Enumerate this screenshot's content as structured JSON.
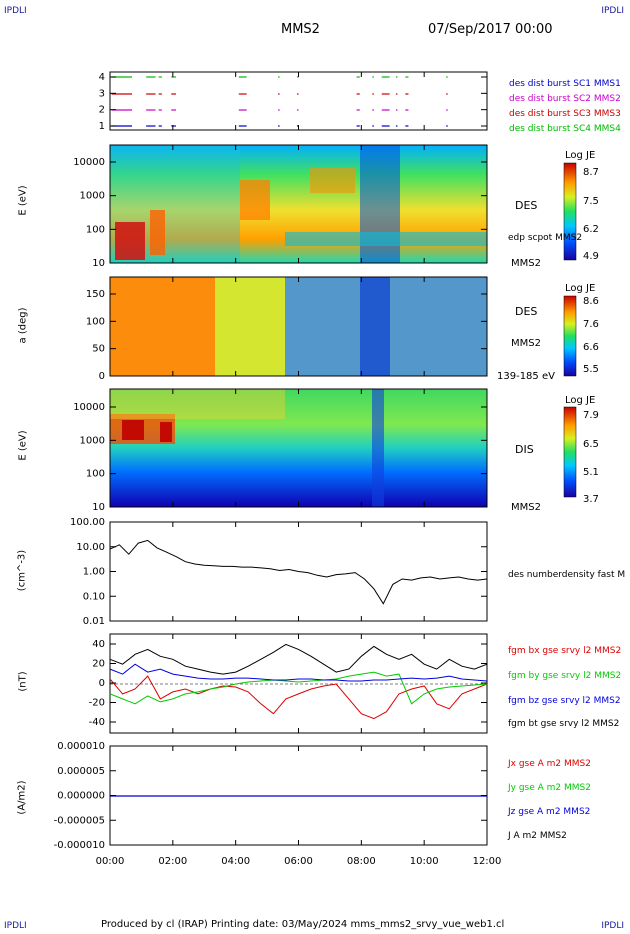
{
  "corners": {
    "top_left": "IPDLI",
    "top_right": "IPDLI",
    "bottom_left": "IPDLI",
    "bottom_right": "IPDLI"
  },
  "header": {
    "spacecraft": "MMS2",
    "date": "07/Sep/2017 00:00"
  },
  "footer": {
    "text": "Produced by cl (IRAP)   Printing date: 03/May/2024   mms_mms2_srvy_vue_web1.cl"
  },
  "time_axis": {
    "ticks": [
      "00:00",
      "02:00",
      "04:00",
      "06:00",
      "08:00",
      "10:00",
      "12:00"
    ],
    "range_hours": [
      0,
      12
    ]
  },
  "chart_data": [
    {
      "type": "timeline",
      "panel": "burst",
      "yticks": [
        "4",
        "3",
        "2",
        "1"
      ],
      "legend": [
        {
          "name": "des dist burst SC1 MMS1",
          "color": "#0000cc"
        },
        {
          "name": "des dist burst SC2 MMS2",
          "color": "#cc00cc"
        },
        {
          "name": "des dist burst SC3 MMS3",
          "color": "#cc0000"
        },
        {
          "name": "des dist burst SC4 MMS4",
          "color": "#00bb00"
        }
      ],
      "segments_hours": [
        [
          0.05,
          0.7
        ],
        [
          1.15,
          1.45
        ],
        [
          1.55,
          1.65
        ],
        [
          1.95,
          2.1
        ],
        [
          4.1,
          4.35
        ],
        [
          5.35,
          5.4
        ],
        [
          5.95,
          6.0
        ],
        [
          7.85,
          7.95
        ],
        [
          8.35,
          8.4
        ],
        [
          8.65,
          8.9
        ],
        [
          9.1,
          9.15
        ],
        [
          9.4,
          9.5
        ],
        [
          10.7,
          10.75
        ]
      ]
    },
    {
      "type": "heatmap",
      "panel": "des_energy",
      "ylabel": "E (eV)",
      "yticks": [
        "10000",
        "1000",
        "100",
        "10"
      ],
      "side_labels": [
        "DES",
        "MMS2"
      ],
      "overlay_label": "edp scpot MMS2",
      "colorbar": {
        "title": "Log JE",
        "ticks": [
          "8.7",
          "7.5",
          "6.2",
          "4.9"
        ]
      }
    },
    {
      "type": "heatmap",
      "panel": "des_pitch",
      "ylabel": "a (deg)",
      "yticks": [
        "150",
        "100",
        "50",
        "0"
      ],
      "side_labels": [
        "DES",
        "MMS2",
        "139-185 eV"
      ],
      "colorbar": {
        "title": "Log JE",
        "ticks": [
          "8.6",
          "7.6",
          "6.6",
          "5.5"
        ]
      }
    },
    {
      "type": "heatmap",
      "panel": "dis_energy",
      "ylabel": "E (eV)",
      "yticks": [
        "10000",
        "1000",
        "100",
        "10"
      ],
      "side_labels": [
        "DIS",
        "MMS2"
      ],
      "colorbar": {
        "title": "Log JE",
        "ticks": [
          "7.9",
          "6.5",
          "5.1",
          "3.7"
        ]
      }
    },
    {
      "type": "line",
      "panel": "density",
      "ylabel": "(cm^-3)",
      "yscale": "log",
      "ylim": [
        0.01,
        100
      ],
      "yticks": [
        "100.00",
        "10.00",
        "1.00",
        "0.10",
        "0.01"
      ],
      "series": [
        {
          "name": "des numberdensity fast M",
          "color": "#000000"
        }
      ],
      "x": [
        0,
        0.3,
        0.6,
        0.9,
        1.2,
        1.5,
        1.8,
        2.1,
        2.4,
        2.7,
        3.0,
        3.3,
        3.6,
        3.9,
        4.2,
        4.5,
        4.8,
        5.1,
        5.4,
        5.7,
        6.0,
        6.3,
        6.6,
        6.9,
        7.2,
        7.5,
        7.8,
        8.1,
        8.4,
        8.7,
        9.0,
        9.3,
        9.6,
        9.9,
        10.2,
        10.5,
        10.8,
        11.1,
        11.4,
        11.7,
        12.0
      ],
      "y": [
        8,
        12,
        5,
        14,
        18,
        9,
        6,
        4,
        2.5,
        2,
        1.8,
        1.7,
        1.6,
        1.6,
        1.5,
        1.5,
        1.4,
        1.3,
        1.1,
        1.2,
        1.0,
        0.9,
        0.7,
        0.6,
        0.75,
        0.8,
        0.9,
        0.5,
        0.2,
        0.05,
        0.3,
        0.5,
        0.45,
        0.55,
        0.6,
        0.5,
        0.55,
        0.6,
        0.5,
        0.45,
        0.5
      ]
    },
    {
      "type": "line",
      "panel": "magnetic_field",
      "ylabel": "(nT)",
      "ylim": [
        -50,
        50
      ],
      "yticks": [
        "40",
        "20",
        "0",
        "-20",
        "-40"
      ],
      "x": [
        0,
        0.4,
        0.8,
        1.2,
        1.6,
        2.0,
        2.4,
        2.8,
        3.2,
        3.6,
        4.0,
        4.4,
        4.8,
        5.2,
        5.6,
        6.0,
        6.4,
        6.8,
        7.2,
        7.6,
        8.0,
        8.4,
        8.8,
        9.2,
        9.6,
        10.0,
        10.4,
        10.8,
        11.2,
        11.6,
        12.0
      ],
      "series": [
        {
          "name": "fgm bx gse srvy l2 MMS2",
          "color": "#dd0000",
          "values": [
            5,
            -10,
            -5,
            8,
            -15,
            -8,
            -5,
            -10,
            -5,
            -2,
            -3,
            -8,
            -20,
            -30,
            -15,
            -10,
            -5,
            -2,
            0,
            -15,
            -30,
            -35,
            -28,
            -10,
            -5,
            -2,
            -20,
            -25,
            -10,
            -5,
            0
          ]
        },
        {
          "name": "fgm by gse srvy l2 MMS2",
          "color": "#00cc00",
          "values": [
            -10,
            -15,
            -20,
            -12,
            -18,
            -15,
            -10,
            -8,
            -5,
            -3,
            0,
            2,
            3,
            4,
            3,
            2,
            3,
            4,
            5,
            8,
            10,
            12,
            8,
            10,
            -20,
            -10,
            -5,
            -3,
            -2,
            -1,
            0
          ]
        },
        {
          "name": "fgm bz gse srvy l2 MMS2",
          "color": "#0000dd",
          "values": [
            15,
            10,
            20,
            12,
            15,
            10,
            8,
            6,
            5,
            5,
            6,
            6,
            5,
            4,
            4,
            5,
            5,
            4,
            4,
            3,
            3,
            4,
            4,
            5,
            6,
            5,
            6,
            8,
            5,
            4,
            3
          ]
        },
        {
          "name": "fgm bt gse srvy l2 MMS2",
          "color": "#000000",
          "values": [
            25,
            20,
            30,
            35,
            28,
            25,
            18,
            15,
            12,
            10,
            12,
            18,
            25,
            32,
            40,
            35,
            28,
            20,
            12,
            15,
            28,
            38,
            30,
            25,
            30,
            20,
            15,
            25,
            18,
            15,
            20
          ]
        }
      ]
    },
    {
      "type": "line",
      "panel": "current",
      "ylabel": "(A/m2)",
      "ylim": [
        -1e-05,
        1e-05
      ],
      "yticks": [
        "0.000010",
        "0.000005",
        "0.000000",
        "-0.000005",
        "-0.000010"
      ],
      "series": [
        {
          "name": "Jx gse A m2 MMS2",
          "color": "#dd0000"
        },
        {
          "name": "Jy gse A m2 MMS2",
          "color": "#00cc00"
        },
        {
          "name": "Jz gse A m2 MMS2",
          "color": "#0000dd"
        },
        {
          "name": "J A m2 MMS2",
          "color": "#000000"
        }
      ]
    }
  ]
}
